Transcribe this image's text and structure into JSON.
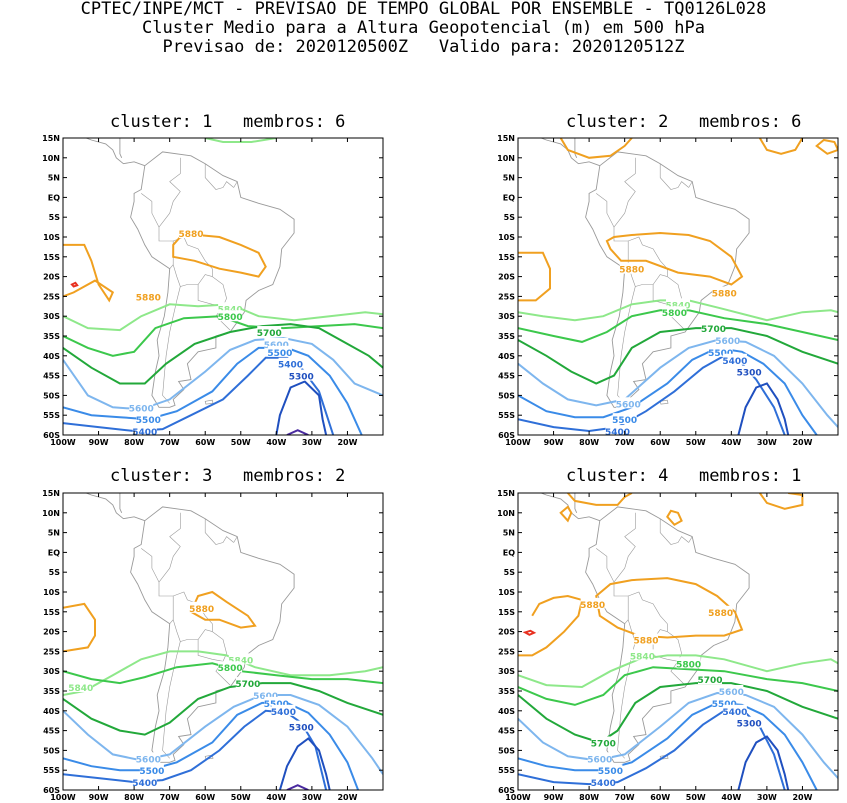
{
  "header": {
    "line1": "CPTEC/INPE/MCT - PREVISAO DE TEMPO GLOBAL POR ENSEMBLE - TQ0126L028",
    "line2": "Cluster Medio para a Altura Geopotencial (m) em 500 hPa",
    "line3": "Previsao de: 2020120500Z   Valido para: 2020120512Z"
  },
  "colors": {
    "c5300": "#1f4fbf",
    "c5400": "#2f6fd8",
    "c5500": "#3a8be8",
    "c5600": "#7eb6ee",
    "c5700": "#22a83a",
    "c5800": "#3cc84c",
    "c5840": "#8ee88a",
    "c5880": "#f0a020",
    "c5920": "#e83020",
    "c5200": "#4a2aa0",
    "map": "#9a9a9a"
  },
  "chart_data": [
    {
      "type": "contour",
      "title": "cluster: 1   membros: 6",
      "lon_labels": [
        "100W",
        "90W",
        "80W",
        "70W",
        "60W",
        "50W",
        "40W",
        "30W",
        "20W"
      ],
      "lat_labels": [
        "15N",
        "10N",
        "5N",
        "EQ",
        "5S",
        "10S",
        "15S",
        "20S",
        "25S",
        "30S",
        "35S",
        "40S",
        "45S",
        "50S",
        "55S",
        "60S"
      ],
      "xlim": [
        -100,
        -10
      ],
      "ylim": [
        -60,
        15
      ],
      "contour_labels": [
        {
          "text": "5880",
          "lon": -76,
          "lat": -25
        },
        {
          "text": "5880",
          "lon": -64,
          "lat": -9
        },
        {
          "text": "5840",
          "lon": -53,
          "lat": -28
        },
        {
          "text": "5800",
          "lon": -53,
          "lat": -30
        },
        {
          "text": "5700",
          "lon": -42,
          "lat": -34
        },
        {
          "text": "5600",
          "lon": -40,
          "lat": -37
        },
        {
          "text": "5500",
          "lon": -39,
          "lat": -39
        },
        {
          "text": "5400",
          "lon": -36,
          "lat": -42
        },
        {
          "text": "5300",
          "lon": -33,
          "lat": -45
        },
        {
          "text": "5600",
          "lon": -78,
          "lat": -53
        },
        {
          "text": "5500",
          "lon": -76,
          "lat": -56
        },
        {
          "text": "5400",
          "lon": -77,
          "lat": -59
        }
      ]
    },
    {
      "type": "contour",
      "title": "cluster: 2   membros: 6",
      "lon_labels": [
        "100W",
        "90W",
        "80W",
        "70W",
        "60W",
        "50W",
        "40W",
        "30W",
        "20W"
      ],
      "lat_labels": [
        "15N",
        "10N",
        "5N",
        "EQ",
        "5S",
        "10S",
        "15S",
        "20S",
        "25S",
        "30S",
        "35S",
        "40S",
        "45S",
        "50S",
        "55S",
        "60S"
      ],
      "xlim": [
        -100,
        -10
      ],
      "ylim": [
        -60,
        15
      ],
      "contour_labels": [
        {
          "text": "5880",
          "lon": -68,
          "lat": -18
        },
        {
          "text": "5880",
          "lon": -42,
          "lat": -24
        },
        {
          "text": "5840",
          "lon": -55,
          "lat": -27
        },
        {
          "text": "5800",
          "lon": -56,
          "lat": -29
        },
        {
          "text": "5700",
          "lon": -45,
          "lat": -33
        },
        {
          "text": "5600",
          "lon": -41,
          "lat": -36
        },
        {
          "text": "5500",
          "lon": -43,
          "lat": -39
        },
        {
          "text": "5400",
          "lon": -39,
          "lat": -41
        },
        {
          "text": "5300",
          "lon": -35,
          "lat": -44
        },
        {
          "text": "5600",
          "lon": -69,
          "lat": -52
        },
        {
          "text": "5500",
          "lon": -70,
          "lat": -56
        },
        {
          "text": "5400",
          "lon": -72,
          "lat": -59
        }
      ]
    },
    {
      "type": "contour",
      "title": "cluster: 3   membros: 2",
      "lon_labels": [
        "100W",
        "90W",
        "80W",
        "70W",
        "60W",
        "50W",
        "40W",
        "30W",
        "20W"
      ],
      "lat_labels": [
        "15N",
        "10N",
        "5N",
        "EQ",
        "5S",
        "10S",
        "15S",
        "20S",
        "25S",
        "30S",
        "35S",
        "40S",
        "45S",
        "50S",
        "55S",
        "60S"
      ],
      "xlim": [
        -100,
        -10
      ],
      "ylim": [
        -60,
        15
      ],
      "contour_labels": [
        {
          "text": "5880",
          "lon": -61,
          "lat": -14
        },
        {
          "text": "5840",
          "lon": -50,
          "lat": -27
        },
        {
          "text": "5800",
          "lon": -53,
          "lat": -29
        },
        {
          "text": "5840",
          "lon": -95,
          "lat": -34
        },
        {
          "text": "5700",
          "lon": -48,
          "lat": -33
        },
        {
          "text": "5600",
          "lon": -43,
          "lat": -36
        },
        {
          "text": "5500",
          "lon": -40,
          "lat": -38
        },
        {
          "text": "5400",
          "lon": -38,
          "lat": -40
        },
        {
          "text": "5300",
          "lon": -33,
          "lat": -44
        },
        {
          "text": "5600",
          "lon": -76,
          "lat": -52
        },
        {
          "text": "5500",
          "lon": -75,
          "lat": -55
        },
        {
          "text": "5400",
          "lon": -77,
          "lat": -58
        }
      ]
    },
    {
      "type": "contour",
      "title": "cluster: 4   membros: 1",
      "lon_labels": [
        "100W",
        "90W",
        "80W",
        "70W",
        "60W",
        "50W",
        "40W",
        "30W",
        "20W"
      ],
      "lat_labels": [
        "15N",
        "10N",
        "5N",
        "EQ",
        "5S",
        "10S",
        "15S",
        "20S",
        "25S",
        "30S",
        "35S",
        "40S",
        "45S",
        "50S",
        "55S",
        "60S"
      ],
      "xlim": [
        -100,
        -10
      ],
      "ylim": [
        -60,
        15
      ],
      "contour_labels": [
        {
          "text": "5880",
          "lon": -79,
          "lat": -13
        },
        {
          "text": "5880",
          "lon": -43,
          "lat": -15
        },
        {
          "text": "5880",
          "lon": -64,
          "lat": -22
        },
        {
          "text": "5840",
          "lon": -65,
          "lat": -26
        },
        {
          "text": "5800",
          "lon": -52,
          "lat": -28
        },
        {
          "text": "5700",
          "lon": -46,
          "lat": -32
        },
        {
          "text": "5600",
          "lon": -40,
          "lat": -35
        },
        {
          "text": "5500",
          "lon": -42,
          "lat": -38
        },
        {
          "text": "5400",
          "lon": -39,
          "lat": -40
        },
        {
          "text": "5300",
          "lon": -35,
          "lat": -43
        },
        {
          "text": "5700",
          "lon": -76,
          "lat": -48
        },
        {
          "text": "5600",
          "lon": -77,
          "lat": -52
        },
        {
          "text": "5500",
          "lon": -74,
          "lat": -55
        },
        {
          "text": "5400",
          "lon": -76,
          "lat": -58
        }
      ]
    }
  ]
}
